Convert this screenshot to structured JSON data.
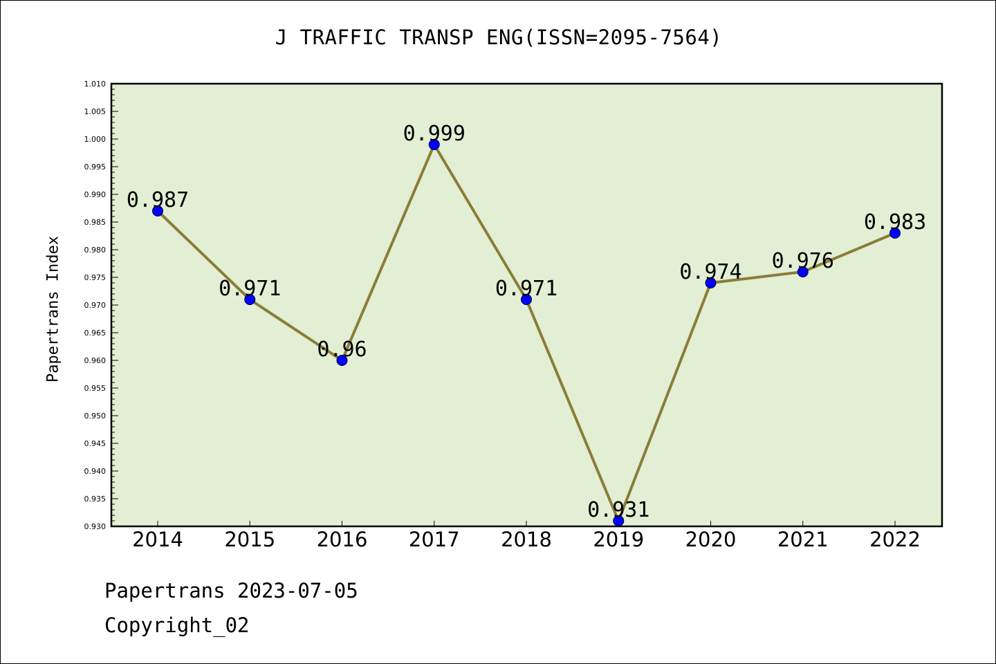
{
  "chart_data": {
    "type": "line",
    "title": "J TRAFFIC TRANSP ENG(ISSN=2095-7564)",
    "xlabel": "",
    "ylabel": "Papertrans Index",
    "categories": [
      "2014",
      "2015",
      "2016",
      "2017",
      "2018",
      "2019",
      "2020",
      "2021",
      "2022"
    ],
    "values": [
      0.987,
      0.971,
      0.96,
      0.999,
      0.971,
      0.931,
      0.974,
      0.976,
      0.983
    ],
    "value_labels": [
      "0.987",
      "0.971",
      "0.96",
      "0.999",
      "0.971",
      "0.931",
      "0.974",
      "0.976",
      "0.983"
    ],
    "ylim": [
      0.93,
      1.01
    ],
    "yticks": [
      "0.930",
      "0.935",
      "0.940",
      "0.945",
      "0.950",
      "0.955",
      "0.960",
      "0.965",
      "0.970",
      "0.975",
      "0.980",
      "0.985",
      "0.990",
      "0.995",
      "1.000",
      "1.005",
      "1.010"
    ],
    "grid": false,
    "legend": "none",
    "colors": {
      "line": "#8b7d37",
      "marker": "#0000ff",
      "plot_bg": "#e2efd5",
      "axes": "#000000"
    }
  },
  "footer": {
    "line1": "Papertrans 2023-07-05",
    "line2": "Copyright_02"
  }
}
